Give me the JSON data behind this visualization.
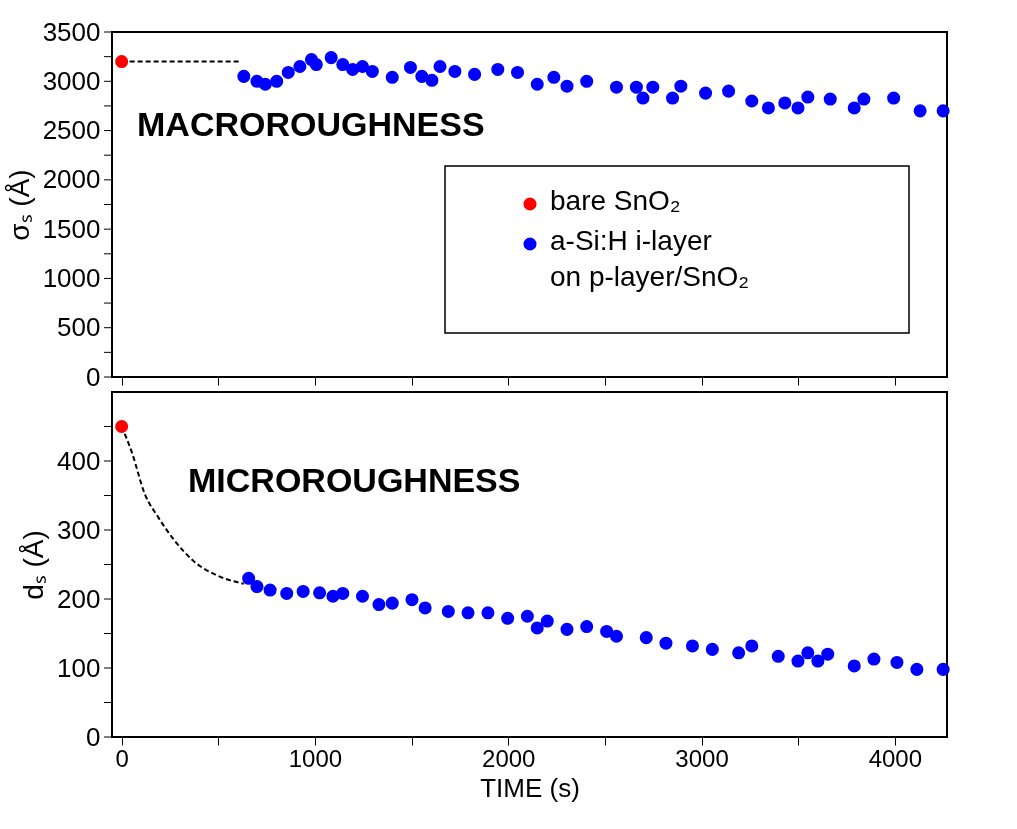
{
  "chart_data": [
    {
      "type": "scatter",
      "ylabel": "σₛ (Å)",
      "annotations": [
        "MACROROUGHNESS"
      ],
      "legend": "right",
      "marker": "circle",
      "grid": false,
      "tick_labels": "y",
      "xlim": [
        -50,
        4270
      ],
      "ylim": [
        0,
        3500
      ],
      "xticks": [
        0,
        {
          "value": 500,
          "label": null
        },
        1000,
        {
          "value": 1500,
          "label": null
        },
        2000,
        {
          "value": 2500,
          "label": null
        },
        3000,
        {
          "value": 3500,
          "label": null
        },
        4000
      ],
      "yticks": [
        0,
        {
          "value": 250,
          "label": null
        },
        500,
        {
          "value": 750,
          "label": null
        },
        1000,
        {
          "value": 1250,
          "label": null
        },
        1500,
        {
          "value": 1750,
          "label": null
        },
        2000,
        {
          "value": 2250,
          "label": null
        },
        2500,
        {
          "value": 2750,
          "label": null
        },
        3000,
        {
          "value": 3250,
          "label": null
        },
        3500
      ],
      "series": [
        {
          "type": "line",
          "line_style": "dashed",
          "marker": "none",
          "color": "#000000",
          "x": [
            0,
            615
          ],
          "values": [
            3200,
            3200
          ]
        },
        {
          "name": "bare SnO₂",
          "color": "#ff0000",
          "x": [
            0
          ],
          "values": [
            3200
          ]
        },
        {
          "name": "a-Si:H i-layer\non p-layer/SnO₂",
          "color": "#0000ff",
          "x": [
            632,
            700,
            743,
            802,
            862,
            922,
            982,
            1007,
            1084,
            1144,
            1195,
            1246,
            1297,
            1400,
            1494,
            1553,
            1605,
            1647,
            1724,
            1826,
            1946,
            2048,
            2150,
            2236,
            2304,
            2406,
            2560,
            2663,
            2697,
            2748,
            2850,
            2893,
            3021,
            3140,
            3260,
            3346,
            3431,
            3499,
            3550,
            3666,
            3790,
            3840,
            3994,
            4131,
            4250
          ],
          "values": [
            3050,
            3000,
            2970,
            3000,
            3090,
            3150,
            3220,
            3170,
            3240,
            3170,
            3120,
            3150,
            3100,
            3040,
            3140,
            3050,
            3010,
            3150,
            3100,
            3070,
            3120,
            3090,
            2970,
            3040,
            2950,
            3000,
            2940,
            2940,
            2830,
            2940,
            2830,
            2950,
            2880,
            2900,
            2800,
            2730,
            2780,
            2730,
            2840,
            2820,
            2730,
            2820,
            2830,
            2700,
            2700
          ]
        }
      ]
    },
    {
      "type": "scatter",
      "xlabel": "TIME (s)",
      "ylabel": "dₛ (Å)",
      "annotations": [
        "MICROROUGHNESS"
      ],
      "marker": "circle",
      "grid": false,
      "xlim": [
        -50,
        4270
      ],
      "ylim": [
        0,
        500
      ],
      "xticks": [
        0,
        {
          "value": 500,
          "label": null
        },
        1000,
        {
          "value": 1500,
          "label": null
        },
        2000,
        {
          "value": 2500,
          "label": null
        },
        3000,
        {
          "value": 3500,
          "label": null
        },
        4000
      ],
      "yticks": [
        0,
        {
          "value": 50,
          "label": null
        },
        100,
        {
          "value": 150,
          "label": null
        },
        200,
        {
          "value": 250,
          "label": null
        },
        300,
        {
          "value": 350,
          "label": null
        },
        400,
        {
          "value": 450,
          "label": null
        }
      ],
      "series": [
        {
          "type": "line",
          "line_style": "dashed",
          "marker": "none",
          "color": "#000000",
          "x": [
            0,
            51,
            120,
            188,
            273,
            376,
            495,
            632
          ],
          "values": [
            450,
            414,
            352,
            319,
            285,
            254,
            234,
            222
          ]
        },
        {
          "color": "#ff0000",
          "x": [
            0
          ],
          "values": [
            450
          ]
        },
        {
          "color": "#0000ff",
          "x": [
            657,
            700,
            768,
            854,
            939,
            1024,
            1093,
            1144,
            1246,
            1331,
            1400,
            1502,
            1570,
            1690,
            1792,
            1895,
            1997,
            2099,
            2150,
            2202,
            2304,
            2406,
            2509,
            2560,
            2714,
            2816,
            2953,
            3056,
            3192,
            3260,
            3397,
            3499,
            3550,
            3602,
            3653,
            3790,
            3892,
            4011,
            4114,
            4250
          ],
          "values": [
            230,
            218,
            213,
            208,
            211,
            209,
            204,
            208,
            204,
            192,
            194,
            199,
            187,
            182,
            180,
            180,
            172,
            175,
            158,
            168,
            156,
            160,
            153,
            146,
            144,
            136,
            132,
            127,
            122,
            132,
            117,
            110,
            122,
            110,
            120,
            103,
            113,
            108,
            98,
            98
          ]
        }
      ]
    }
  ]
}
